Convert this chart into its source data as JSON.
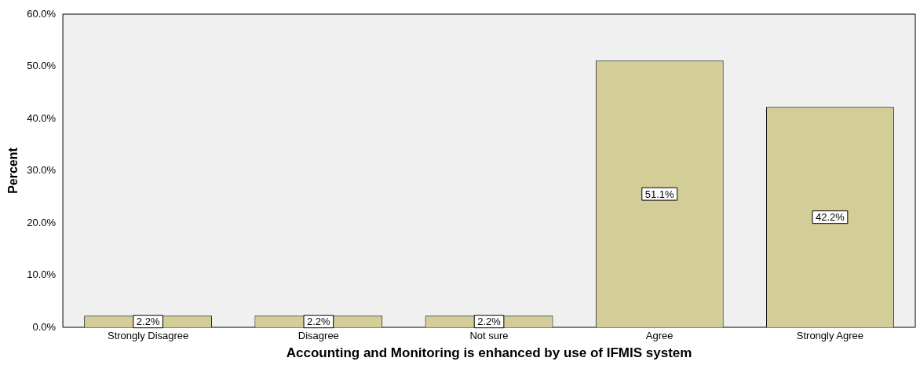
{
  "chart_data": {
    "type": "bar",
    "xlabel": "Accounting and Monitoring is enhanced by use of IFMIS system",
    "ylabel": "Percent",
    "categories": [
      "Strongly Disagree",
      "Disagree",
      "Not sure",
      "Agree",
      "Strongly Agree"
    ],
    "values": [
      2.2,
      2.2,
      2.2,
      51.1,
      42.2
    ],
    "value_labels": [
      "2.2%",
      "2.2%",
      "2.2%",
      "51.1%",
      "42.2%"
    ],
    "color": "#d3ce97",
    "ylim": [
      0,
      60
    ],
    "yticks": [
      {
        "value": 0,
        "label": "0.0%"
      },
      {
        "value": 10,
        "label": "10.0%"
      },
      {
        "value": 20,
        "label": "20.0%"
      },
      {
        "value": 30,
        "label": "30.0%"
      },
      {
        "value": 40,
        "label": "40.0%"
      },
      {
        "value": 50,
        "label": "50.0%"
      },
      {
        "value": 60,
        "label": "60.0%"
      }
    ],
    "grid": false,
    "legend": false
  }
}
